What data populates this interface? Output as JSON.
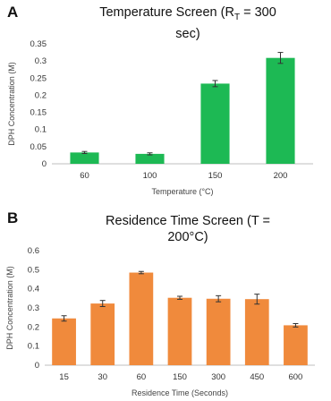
{
  "chart_data": [
    {
      "type": "bar",
      "panel_label": "A",
      "title_prefix": "Temperature Screen (R",
      "title_sub": "T",
      "title_suffix": " = 300",
      "title_line2": "sec)",
      "categories": [
        "60",
        "100",
        "150",
        "200"
      ],
      "values": [
        0.033,
        0.029,
        0.234,
        0.309
      ],
      "errors": [
        0.003,
        0.003,
        0.009,
        0.016
      ],
      "xlabel": "Temperature (°C)",
      "ylabel": "DPH Concentration (M)",
      "ylim": [
        0,
        0.35
      ],
      "yticks": [
        "0",
        "0.05",
        "0.1",
        "0.15",
        "0.2",
        "0.25",
        "0.3",
        "0.35"
      ],
      "color": "#1db954",
      "grid": false,
      "legend": "none"
    },
    {
      "type": "bar",
      "panel_label": "B",
      "title_line1": "Residence Time Screen (T =",
      "title_line2": "200°C)",
      "categories": [
        "15",
        "30",
        "60",
        "150",
        "300",
        "450",
        "600"
      ],
      "values": [
        0.245,
        0.323,
        0.485,
        0.353,
        0.348,
        0.346,
        0.209
      ],
      "errors": [
        0.014,
        0.016,
        0.006,
        0.008,
        0.016,
        0.026,
        0.009
      ],
      "xlabel": "Residence Time (Seconds)",
      "ylabel": "DPH Concentration (M)",
      "ylim": [
        0,
        0.6
      ],
      "yticks": [
        "0",
        "0.1",
        "0.2",
        "0.3",
        "0.4",
        "0.5",
        "0.6"
      ],
      "color": "#f08a3c",
      "grid": false,
      "legend": "none"
    }
  ]
}
